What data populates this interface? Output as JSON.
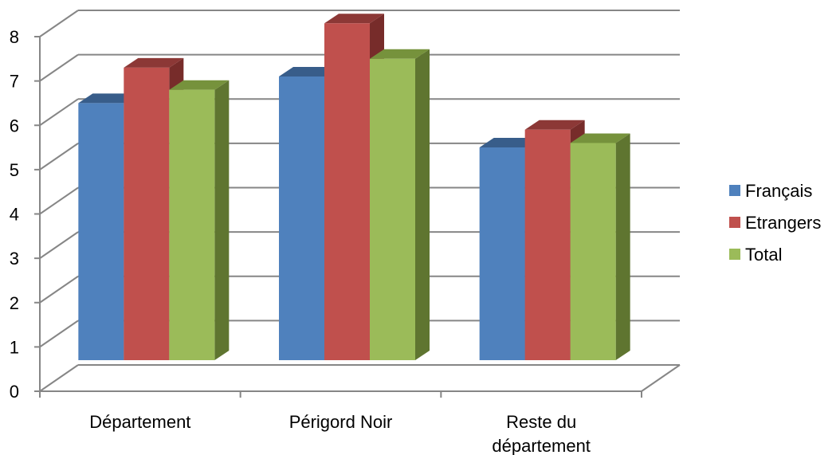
{
  "chart_data": {
    "type": "bar",
    "categories": [
      [
        "Département"
      ],
      [
        "Périgord Noir"
      ],
      [
        "Reste du",
        "département"
      ]
    ],
    "series": [
      {
        "name": "Français",
        "values": [
          5.8,
          6.4,
          4.8
        ],
        "color": "#4F81BD",
        "side_color": "#2C4D75",
        "top_color": "#385D8A"
      },
      {
        "name": "Etrangers",
        "values": [
          6.6,
          7.6,
          5.2
        ],
        "color": "#C0504D",
        "side_color": "#772C2A",
        "top_color": "#8C3836"
      },
      {
        "name": "Total",
        "values": [
          6.1,
          6.8,
          4.9
        ],
        "color": "#9BBB59",
        "side_color": "#5F7530",
        "top_color": "#76923C"
      }
    ],
    "ylim": [
      0,
      8
    ],
    "yticks": [
      "0",
      "1",
      "2",
      "3",
      "4",
      "5",
      "6",
      "7",
      "8"
    ],
    "grid": true,
    "legend": "right",
    "style": "3d-clustered-column"
  }
}
